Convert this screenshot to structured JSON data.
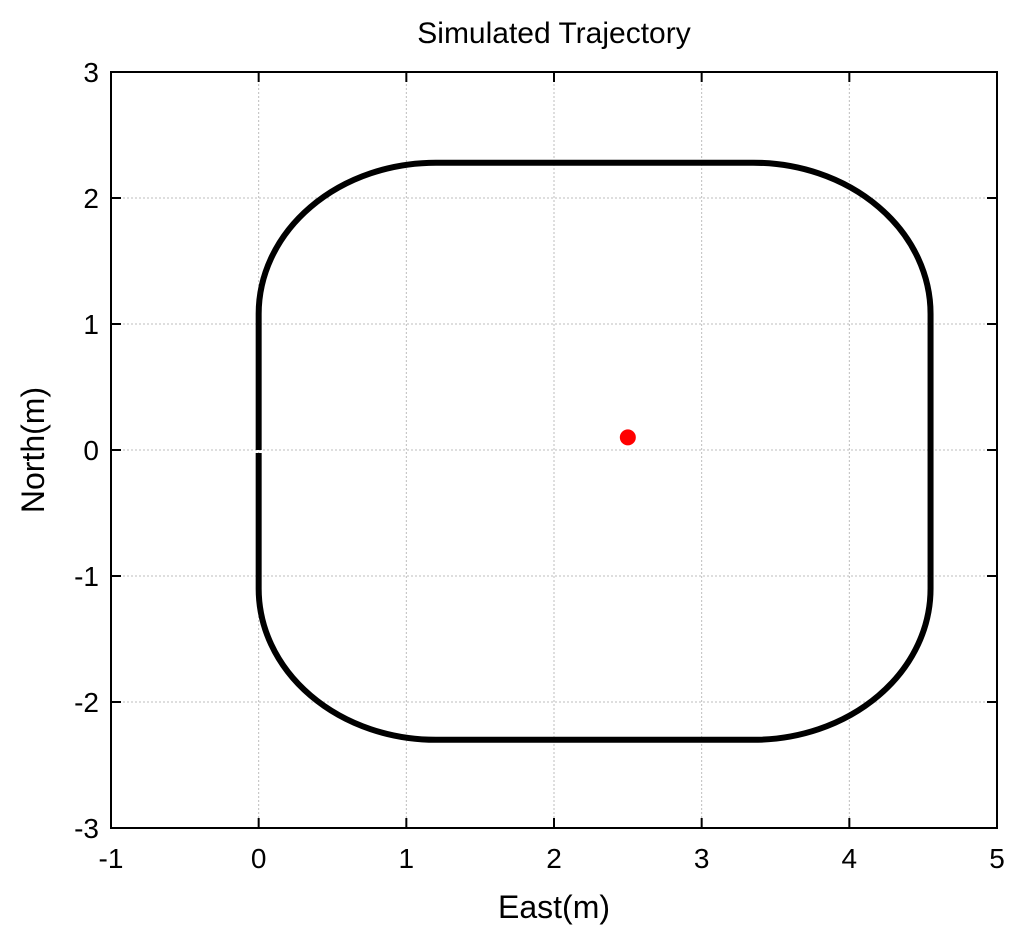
{
  "chart_data": {
    "type": "line",
    "title": "Simulated Trajectory",
    "xlabel": "East(m)",
    "ylabel": "North(m)",
    "xlim": [
      -1,
      5
    ],
    "ylim": [
      -3,
      3
    ],
    "xticks": [
      -1,
      0,
      1,
      2,
      3,
      4,
      5
    ],
    "yticks": [
      -3,
      -2,
      -1,
      0,
      1,
      2,
      3
    ],
    "xtick_labels": [
      "-1",
      "0",
      "1",
      "2",
      "3",
      "4",
      "5"
    ],
    "ytick_labels": [
      "-3",
      "-2",
      "-1",
      "0",
      "1",
      "2",
      "3"
    ],
    "grid": true,
    "series": [
      {
        "color": "#000000",
        "path_shape": "rounded-rectangle",
        "x_range": [
          0,
          4.55
        ],
        "y_range": [
          -2.3,
          2.28
        ],
        "corner_radius": 1.2,
        "start": [
          0,
          0
        ]
      }
    ],
    "points": [
      {
        "x": 2.5,
        "y": 0.1,
        "color": "#ff0000"
      }
    ]
  }
}
